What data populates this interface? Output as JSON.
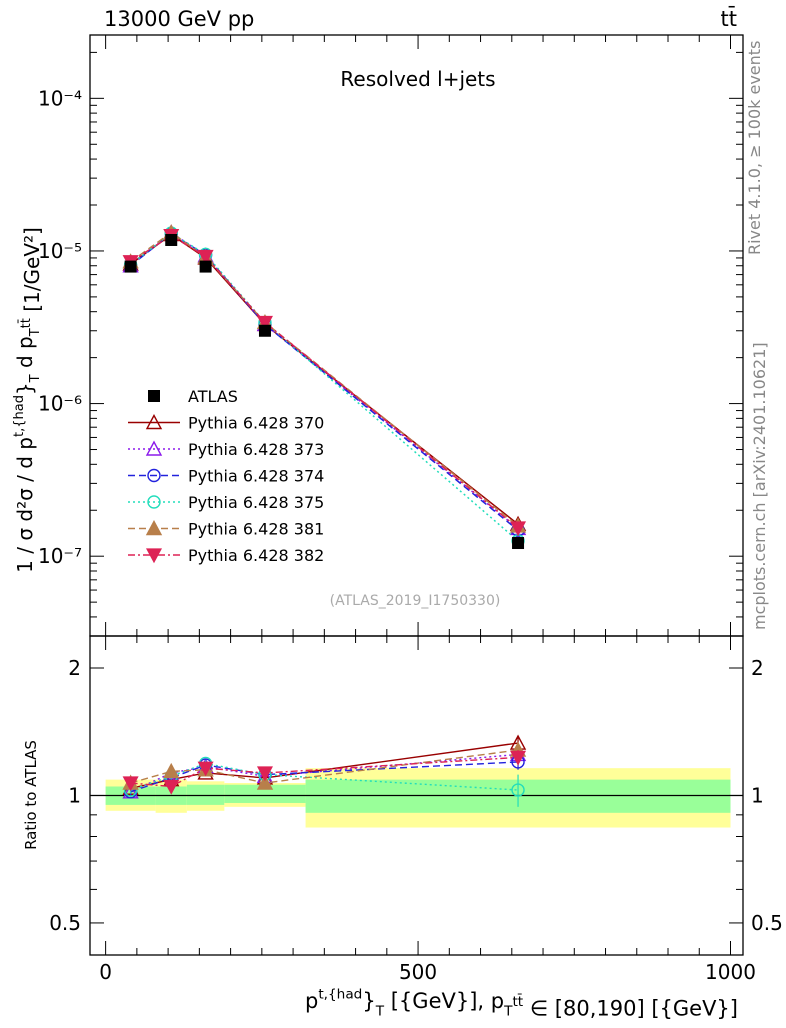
{
  "header": {
    "left": "13000 GeV pp",
    "right": "tt̄"
  },
  "side": {
    "rivet": "Rivet 4.1.0, ≥ 100k events",
    "mcplots": "mcplots.cern.ch [arXiv:2401.10621]"
  },
  "chart_data": [
    {
      "type": "line",
      "panel": "main",
      "title": "Resolved l+jets",
      "watermark": "(ATLAS_2019_I1750330)",
      "ylabel": "1 / σ d²σ / d p^{t,{had}}_{T} d p_{T}^{tt̄} [1/GeV²]",
      "yscale": "log",
      "ylim": [
        3e-08,
        0.00026
      ],
      "xlim": [
        -25,
        1020
      ],
      "y_tick_labels": [
        "10⁻⁷",
        "10⁻⁶",
        "10⁻⁵",
        "10⁻⁴"
      ],
      "x": [
        40,
        105,
        160,
        255,
        660
      ],
      "legend_position": "left-middle",
      "series": [
        {
          "name": "ATLAS",
          "color": "#000000",
          "marker": "square",
          "line": "none",
          "values": [
            7.9e-06,
            1.18e-05,
            7.9e-06,
            3e-06,
            1.22e-07
          ]
        },
        {
          "name": "Pythia 6.428 370",
          "color": "#990000",
          "marker": "triangle-open",
          "line": "solid",
          "values": [
            8.2e-06,
            1.28e-05,
            9e-06,
            3.3e-06,
            1.62e-07
          ]
        },
        {
          "name": "Pythia 6.428 373",
          "color": "#8b1aeb",
          "marker": "triangle-open",
          "line": "dotted",
          "values": [
            8e-06,
            1.32e-05,
            9.3e-06,
            3.3e-06,
            1.52e-07
          ]
        },
        {
          "name": "Pythia 6.428 374",
          "color": "#2222dd",
          "marker": "circle-open",
          "line": "dashed",
          "values": [
            8e-06,
            1.3e-05,
            9.4e-06,
            3.3e-06,
            1.48e-07
          ]
        },
        {
          "name": "Pythia 6.428 375",
          "color": "#22ddbb",
          "marker": "circle-open",
          "line": "dotted",
          "values": [
            8.1e-06,
            1.31e-05,
            9.5e-06,
            3.4e-06,
            1.26e-07
          ]
        },
        {
          "name": "Pythia 6.428 381",
          "color": "#b87f4a",
          "marker": "triangle-filled",
          "line": "dashed",
          "values": [
            8.5e-06,
            1.32e-05,
            9.1e-06,
            3.4e-06,
            1.58e-07
          ]
        },
        {
          "name": "Pythia 6.428 382",
          "color": "#dd2255",
          "marker": "triangle-down-filled",
          "line": "dashdot",
          "values": [
            8.5e-06,
            1.26e-05,
            9.2e-06,
            3.4e-06,
            1.53e-07
          ]
        }
      ]
    },
    {
      "type": "line",
      "panel": "ratio",
      "ylabel": "Ratio to ATLAS",
      "xlabel": "p^{t,{had}}_{T} [{GeV}], p_{T}^{tt̄} ∈ [80,190] [{GeV}]",
      "yscale": "log",
      "ylim": [
        0.42,
        2.38
      ],
      "xlim": [
        -25,
        1020
      ],
      "y_ticks": [
        0.5,
        1,
        2
      ],
      "y_tick_labels": [
        "0.5",
        "1",
        "2"
      ],
      "x_ticks": [
        0,
        500,
        1000
      ],
      "x_tick_labels": [
        "0",
        "500",
        "1000"
      ],
      "reference_line": 1,
      "bands": {
        "bin_edges": [
          0,
          80,
          130,
          190,
          320,
          1000
        ],
        "inner_low": [
          0.95,
          0.95,
          0.95,
          0.96,
          0.91
        ],
        "inner_high": [
          1.05,
          1.05,
          1.06,
          1.06,
          1.09
        ],
        "outer_low": [
          0.92,
          0.91,
          0.92,
          0.94,
          0.84
        ],
        "outer_high": [
          1.09,
          1.09,
          1.08,
          1.07,
          1.16
        ]
      },
      "x": [
        40,
        105,
        160,
        255,
        660
      ],
      "series": [
        {
          "name": "Pythia 6.428 370",
          "values": [
            1.04,
            1.09,
            1.13,
            1.1,
            1.33
          ],
          "errors": [
            0.02,
            0.02,
            0.02,
            0.02,
            0.05
          ]
        },
        {
          "name": "Pythia 6.428 373",
          "values": [
            1.02,
            1.13,
            1.17,
            1.11,
            1.25
          ],
          "errors": [
            0.02,
            0.02,
            0.02,
            0.02,
            0.05
          ]
        },
        {
          "name": "Pythia 6.428 374",
          "values": [
            1.02,
            1.1,
            1.18,
            1.12,
            1.2
          ],
          "errors": [
            0.02,
            0.02,
            0.02,
            0.02,
            0.05
          ]
        },
        {
          "name": "Pythia 6.428 375",
          "values": [
            1.03,
            1.11,
            1.19,
            1.12,
            1.03
          ],
          "errors": [
            0.02,
            0.02,
            0.02,
            0.02,
            0.09
          ]
        },
        {
          "name": "Pythia 6.428 381",
          "values": [
            1.07,
            1.14,
            1.15,
            1.07,
            1.28
          ],
          "errors": [
            0.02,
            0.03,
            0.02,
            0.02,
            0.05
          ]
        },
        {
          "name": "Pythia 6.428 382",
          "values": [
            1.07,
            1.05,
            1.16,
            1.13,
            1.23
          ],
          "errors": [
            0.02,
            0.02,
            0.02,
            0.02,
            0.05
          ]
        }
      ]
    }
  ]
}
